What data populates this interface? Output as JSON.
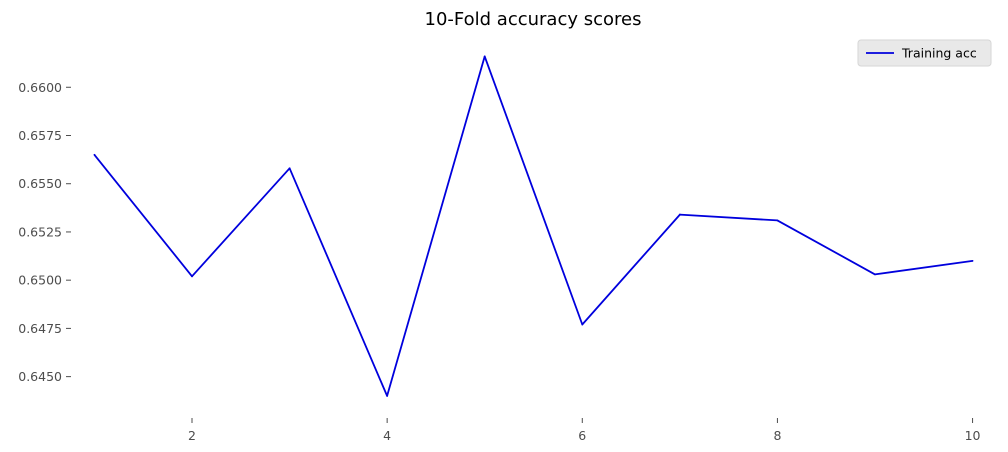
{
  "chart_data": {
    "type": "line",
    "title": "10-Fold accuracy scores",
    "xlabel": "",
    "ylabel": "",
    "x": [
      1,
      2,
      3,
      4,
      5,
      6,
      7,
      8,
      9,
      10
    ],
    "series": [
      {
        "name": "Training acc",
        "color": "#0000dd",
        "values": [
          0.6565,
          0.6502,
          0.6558,
          0.644,
          0.6616,
          0.6477,
          0.6534,
          0.6531,
          0.6503,
          0.651
        ]
      }
    ],
    "xlim": [
      0.77,
      10.23
    ],
    "ylim": [
      0.64327,
      0.66245
    ],
    "xticks": [
      2,
      4,
      6,
      8,
      10
    ],
    "xtick_labels": [
      "2",
      "4",
      "6",
      "8",
      "10"
    ],
    "yticks": [
      0.645,
      0.6475,
      0.65,
      0.6525,
      0.655,
      0.6575,
      0.66
    ],
    "ytick_labels": [
      "0.6450",
      "0.6475",
      "0.6500",
      "0.6525",
      "0.6550",
      "0.6575",
      "0.6600"
    ],
    "grid": false,
    "legend": "top-right",
    "background": "#ffffff"
  }
}
